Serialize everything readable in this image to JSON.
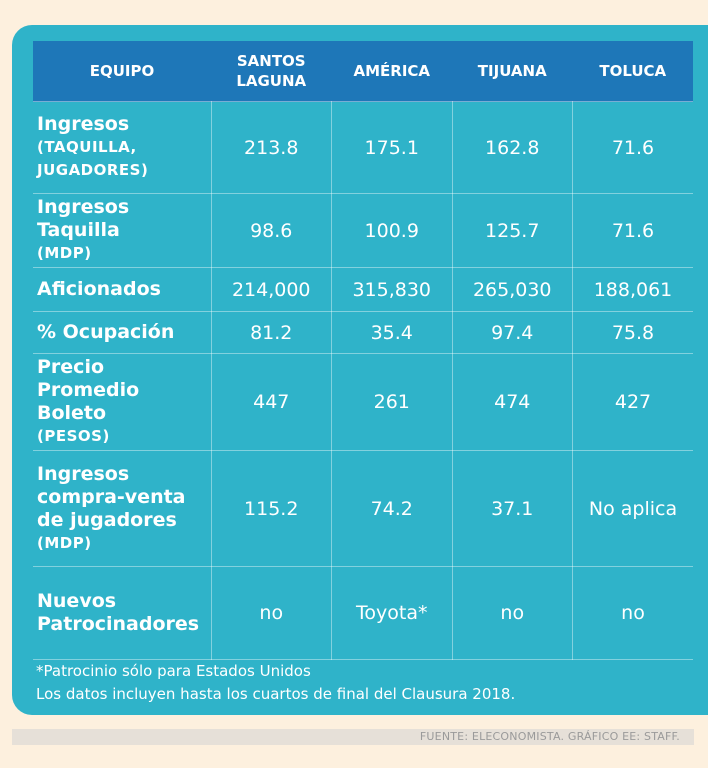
{
  "table": {
    "headers": [
      "EQUIPO",
      "SANTOS LAGUNA",
      "AMÉRICA",
      "TIJUANA",
      "TOLUCA"
    ],
    "rows": [
      {
        "label": [
          "Ingresos"
        ],
        "sub": [
          "(TAQUILLA,",
          "JUGADORES)"
        ],
        "values": [
          "213.8",
          "175.1",
          "162.8",
          "71.6"
        ]
      },
      {
        "label": [
          "Ingresos Taquilla"
        ],
        "sub": [
          "(MDP)"
        ],
        "values": [
          "98.6",
          "100.9",
          "125.7",
          "71.6"
        ]
      },
      {
        "label": [
          "Aficionados"
        ],
        "sub": [],
        "values": [
          "214,000",
          "315,830",
          "265,030",
          "188,061"
        ]
      },
      {
        "label": [
          "% Ocupación"
        ],
        "sub": [],
        "values": [
          "81.2",
          "35.4",
          "97.4",
          "75.8"
        ]
      },
      {
        "label": [
          "Precio Promedio",
          "Boleto"
        ],
        "sub": [
          "(PESOS)"
        ],
        "values": [
          "447",
          "261",
          "474",
          "427"
        ]
      },
      {
        "label": [
          "Ingresos",
          "compra-venta",
          "de jugadores"
        ],
        "sub": [
          "(MDP)"
        ],
        "values": [
          "115.2",
          "74.2",
          "37.1",
          "No aplica"
        ]
      },
      {
        "label": [
          "Nuevos",
          "Patrocinadores"
        ],
        "sub": [],
        "values": [
          "no",
          "Toyota*",
          "no",
          "no"
        ]
      }
    ]
  },
  "notes": [
    "*Patrocinio sólo para Estados Unidos",
    "Los datos incluyen hasta los cuartos de final del Clausura 2018."
  ],
  "source": "FUENTE: ELECONOMISTA. GRÁFICO EE: STAFF.",
  "colors": {
    "card": "#2fb3c9",
    "header": "#1e77b8",
    "background": "#fdf0de"
  }
}
